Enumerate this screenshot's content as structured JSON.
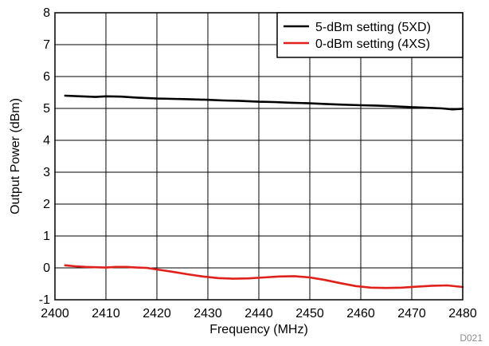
{
  "chart_data": {
    "type": "line",
    "xlabel": "Frequency (MHz)",
    "ylabel": "Output Power (dBm)",
    "xlim": [
      2400,
      2480
    ],
    "ylim": [
      -1,
      8
    ],
    "xticks": [
      2400,
      2410,
      2420,
      2430,
      2440,
      2450,
      2460,
      2470,
      2480
    ],
    "yticks": [
      -1,
      0,
      1,
      2,
      3,
      4,
      5,
      6,
      7,
      8
    ],
    "grid": true,
    "legend_position": "top-right",
    "corner_label": "D021",
    "series": [
      {
        "name": "5-dBm setting (5XD)",
        "color": "#000000",
        "x": [
          2402,
          2405,
          2408,
          2410,
          2413,
          2416,
          2420,
          2423,
          2426,
          2430,
          2433,
          2436,
          2440,
          2443,
          2446,
          2450,
          2453,
          2456,
          2460,
          2463,
          2466,
          2470,
          2473,
          2476,
          2478,
          2480
        ],
        "y": [
          5.4,
          5.38,
          5.36,
          5.38,
          5.37,
          5.34,
          5.31,
          5.3,
          5.29,
          5.27,
          5.25,
          5.24,
          5.21,
          5.2,
          5.18,
          5.16,
          5.14,
          5.12,
          5.1,
          5.09,
          5.07,
          5.04,
          5.02,
          5.0,
          4.97,
          4.99
        ]
      },
      {
        "name": "0-dBm setting (4XS)",
        "color": "#e0201b",
        "x": [
          2402,
          2404,
          2406,
          2408,
          2410,
          2412,
          2414,
          2416,
          2418,
          2420,
          2423,
          2426,
          2429,
          2432,
          2435,
          2438,
          2441,
          2444,
          2447,
          2450,
          2453,
          2456,
          2459,
          2462,
          2465,
          2468,
          2471,
          2474,
          2477,
          2480
        ],
        "y": [
          0.08,
          0.05,
          0.03,
          0.02,
          0.01,
          0.03,
          0.03,
          0.01,
          0.0,
          -0.05,
          -0.12,
          -0.2,
          -0.27,
          -0.32,
          -0.34,
          -0.33,
          -0.3,
          -0.27,
          -0.26,
          -0.3,
          -0.38,
          -0.48,
          -0.57,
          -0.62,
          -0.63,
          -0.62,
          -0.59,
          -0.56,
          -0.55,
          -0.6
        ]
      }
    ]
  }
}
